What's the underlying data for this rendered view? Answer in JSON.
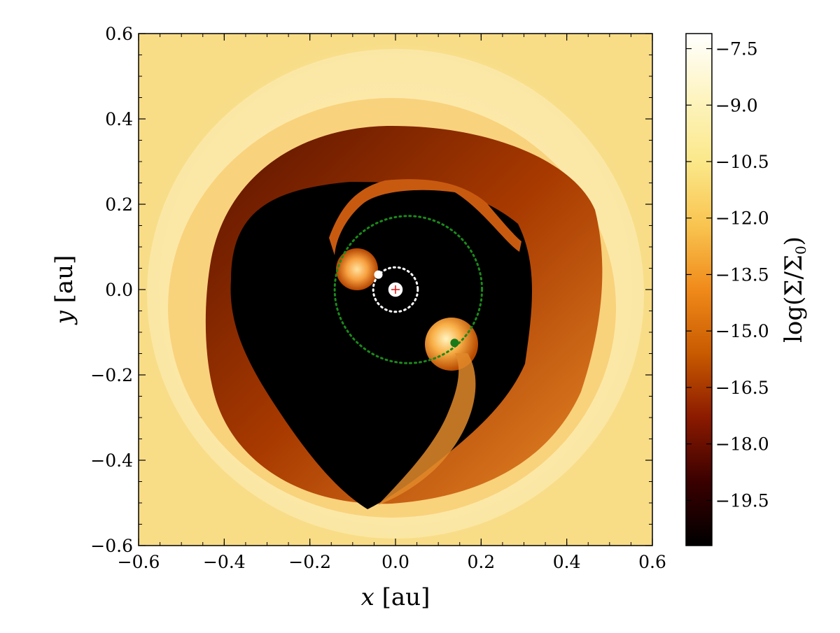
{
  "chart_data": {
    "type": "heatmap",
    "title": "",
    "xlabel_var": "x",
    "xlabel_unit": "[au]",
    "ylabel_var": "y",
    "ylabel_unit": "[au]",
    "xlim": [
      -0.6,
      0.6
    ],
    "ylim": [
      -0.6,
      0.6
    ],
    "x_ticks": [
      -0.6,
      -0.4,
      -0.2,
      0.0,
      0.2,
      0.4,
      0.6
    ],
    "x_tick_labels": [
      "−0.6",
      "−0.4",
      "−0.2",
      "0.0",
      "0.2",
      "0.4",
      "0.6"
    ],
    "y_ticks": [
      -0.6,
      -0.4,
      -0.2,
      0.0,
      0.2,
      0.4,
      0.6
    ],
    "y_tick_labels": [
      "−0.6",
      "−0.4",
      "−0.2",
      "0.0",
      "0.2",
      "0.4",
      "0.6"
    ],
    "colorbar": {
      "label_prefix": "log",
      "label_expr": "(Σ/Σ",
      "label_sub": "0",
      "label_suffix": ")",
      "range": [
        -20.7,
        -7.1
      ],
      "ticks": [
        -7.5,
        -9.0,
        -10.5,
        -12.0,
        -13.5,
        -15.0,
        -16.5,
        -18.0,
        -19.5
      ],
      "tick_labels": [
        "−7.5",
        "−9.0",
        "−10.5",
        "−12.0",
        "−13.5",
        "−15.0",
        "−16.5",
        "−18.0",
        "−19.5"
      ],
      "colormap": [
        "#000000",
        "#3a0000",
        "#8b1a00",
        "#c85a00",
        "#f08a1a",
        "#f9c450",
        "#fbe88a",
        "#fdf4c0",
        "#ffffff"
      ]
    },
    "markers": [
      {
        "name": "central star",
        "x": 0.0,
        "y": 0.0,
        "color": "#ffffff",
        "cross_color": "#e01010"
      },
      {
        "name": "inner planet",
        "x": -0.04,
        "y": 0.035,
        "color": "#ffffff"
      },
      {
        "name": "outer planet",
        "x": 0.138,
        "y": -0.125,
        "color": "#1a7a1a"
      }
    ],
    "orbits": [
      {
        "name": "inner orbit",
        "center": [
          0.0,
          0.0
        ],
        "radius": 0.052,
        "color": "#ffffff"
      },
      {
        "name": "outer orbit",
        "center": [
          0.03,
          0.0
        ],
        "radius": 0.172,
        "color": "#1a8a1a"
      }
    ]
  }
}
